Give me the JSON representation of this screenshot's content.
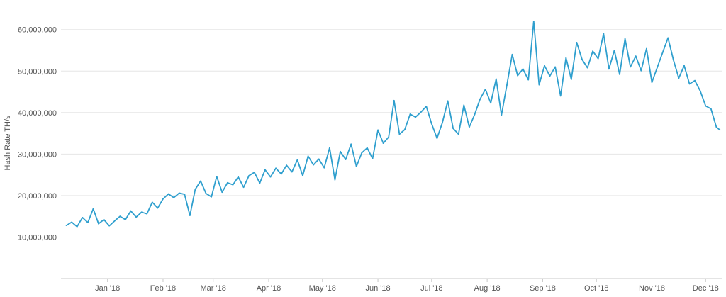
{
  "chart_data": {
    "type": "line",
    "title": "",
    "xlabel": "",
    "ylabel": "Hash Rate TH/s",
    "ylim": [
      0,
      62000000
    ],
    "grid": true,
    "legend": "none",
    "y_ticks": [
      {
        "value": 10000000,
        "label": "10,000,000"
      },
      {
        "value": 20000000,
        "label": "20,000,000"
      },
      {
        "value": 30000000,
        "label": "30,000,000"
      },
      {
        "value": 40000000,
        "label": "40,000,000"
      },
      {
        "value": 50000000,
        "label": "50,000,000"
      },
      {
        "value": 60000000,
        "label": "60,000,000"
      }
    ],
    "x_ticks": [
      {
        "date": "2018-01-01",
        "label": "Jan '18"
      },
      {
        "date": "2018-02-01",
        "label": "Feb '18"
      },
      {
        "date": "2018-03-01",
        "label": "Mar '18"
      },
      {
        "date": "2018-04-01",
        "label": "Apr '18"
      },
      {
        "date": "2018-05-01",
        "label": "May '18"
      },
      {
        "date": "2018-06-01",
        "label": "Jun '18"
      },
      {
        "date": "2018-07-01",
        "label": "Jul '18"
      },
      {
        "date": "2018-08-01",
        "label": "Aug '18"
      },
      {
        "date": "2018-09-01",
        "label": "Sep '18"
      },
      {
        "date": "2018-10-01",
        "label": "Oct '18"
      },
      {
        "date": "2018-11-01",
        "label": "Nov '18"
      },
      {
        "date": "2018-12-01",
        "label": "Dec '18"
      }
    ],
    "x_range": [
      "2017-12-06",
      "2018-12-10"
    ],
    "line_color": "#2f9fce",
    "grid_color": "#e6e6e6",
    "series": [
      {
        "x": [
          "2017-12-09",
          "2017-12-12",
          "2017-12-15",
          "2017-12-18",
          "2017-12-21",
          "2017-12-24",
          "2017-12-27",
          "2017-12-30",
          "2018-01-02",
          "2018-01-05",
          "2018-01-08",
          "2018-01-11",
          "2018-01-14",
          "2018-01-17",
          "2018-01-20",
          "2018-01-23",
          "2018-01-26",
          "2018-01-29",
          "2018-02-01",
          "2018-02-04",
          "2018-02-07",
          "2018-02-10",
          "2018-02-13",
          "2018-02-16",
          "2018-02-19",
          "2018-02-22",
          "2018-02-25",
          "2018-02-28",
          "2018-03-03",
          "2018-03-06",
          "2018-03-09",
          "2018-03-12",
          "2018-03-15",
          "2018-03-18",
          "2018-03-21",
          "2018-03-24",
          "2018-03-27",
          "2018-03-30",
          "2018-04-02",
          "2018-04-05",
          "2018-04-08",
          "2018-04-11",
          "2018-04-14",
          "2018-04-17",
          "2018-04-20",
          "2018-04-23",
          "2018-04-26",
          "2018-04-29",
          "2018-05-02",
          "2018-05-05",
          "2018-05-08",
          "2018-05-11",
          "2018-05-14",
          "2018-05-17",
          "2018-05-20",
          "2018-05-23",
          "2018-05-26",
          "2018-05-29",
          "2018-06-01",
          "2018-06-04",
          "2018-06-07",
          "2018-06-10",
          "2018-06-13",
          "2018-06-16",
          "2018-06-19",
          "2018-06-22",
          "2018-06-25",
          "2018-06-28",
          "2018-07-01",
          "2018-07-04",
          "2018-07-07",
          "2018-07-10",
          "2018-07-13",
          "2018-07-16",
          "2018-07-19",
          "2018-07-22",
          "2018-07-25",
          "2018-07-28",
          "2018-07-31",
          "2018-08-03",
          "2018-08-06",
          "2018-08-09",
          "2018-08-12",
          "2018-08-15",
          "2018-08-18",
          "2018-08-21",
          "2018-08-24",
          "2018-08-27",
          "2018-08-30",
          "2018-09-02",
          "2018-09-05",
          "2018-09-08",
          "2018-09-11",
          "2018-09-14",
          "2018-09-17",
          "2018-09-20",
          "2018-09-23",
          "2018-09-26",
          "2018-09-29",
          "2018-10-02",
          "2018-10-05",
          "2018-10-08",
          "2018-10-11",
          "2018-10-14",
          "2018-10-17",
          "2018-10-20",
          "2018-10-23",
          "2018-10-26",
          "2018-10-29",
          "2018-11-01",
          "2018-11-04",
          "2018-11-07",
          "2018-11-10",
          "2018-11-13",
          "2018-11-16",
          "2018-11-19",
          "2018-11-22",
          "2018-11-25",
          "2018-11-28",
          "2018-12-01",
          "2018-12-04",
          "2018-12-07",
          "2018-12-09"
        ],
        "values": [
          12800000,
          13600000,
          12500000,
          14700000,
          13500000,
          16800000,
          13200000,
          14200000,
          12700000,
          13900000,
          15000000,
          14200000,
          16300000,
          14800000,
          16000000,
          15600000,
          18400000,
          17000000,
          19200000,
          20400000,
          19500000,
          20600000,
          20300000,
          15200000,
          21500000,
          23500000,
          20500000,
          19700000,
          24600000,
          20800000,
          23100000,
          22600000,
          24500000,
          22000000,
          24800000,
          25600000,
          23000000,
          26200000,
          24500000,
          26600000,
          25200000,
          27300000,
          25700000,
          28600000,
          24800000,
          29500000,
          27400000,
          28800000,
          26700000,
          31500000,
          23800000,
          30600000,
          28700000,
          32400000,
          27000000,
          30300000,
          31500000,
          28900000,
          35800000,
          32600000,
          34100000,
          42900000,
          34800000,
          35900000,
          39600000,
          38900000,
          40100000,
          41500000,
          37300000,
          33800000,
          37600000,
          42800000,
          36200000,
          34800000,
          41800000,
          36500000,
          39500000,
          43200000,
          45600000,
          42300000,
          48100000,
          39400000,
          46600000,
          54000000,
          48900000,
          50500000,
          47900000,
          62000000,
          46700000,
          51300000,
          48800000,
          51000000,
          44000000,
          53200000,
          48000000,
          56900000,
          52800000,
          50800000,
          54800000,
          53000000,
          59000000,
          50500000,
          55000000,
          49200000,
          57800000,
          51000000,
          53600000,
          50100000,
          55400000,
          47300000,
          50900000,
          54500000,
          58000000,
          52700000,
          48300000,
          51300000,
          46900000,
          47700000,
          45200000,
          41600000,
          40900000,
          36500000,
          35800000
        ],
        "ticks_hidden": true
      }
    ]
  }
}
